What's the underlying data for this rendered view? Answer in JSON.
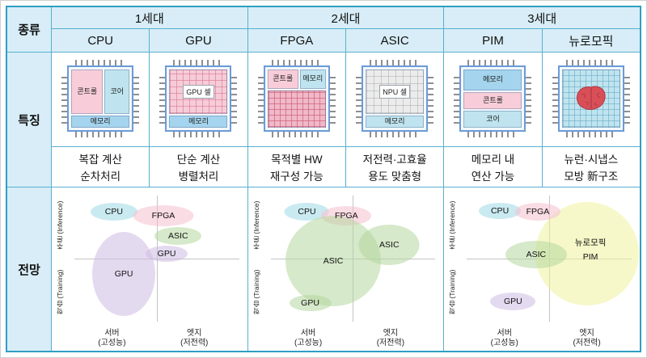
{
  "colors": {
    "table_border": "#2f9ec2",
    "header_bg": "#d8edf7",
    "cyan": "#9fd8e6",
    "pink": "#f5bfcf",
    "green": "#b5d79e",
    "purple": "#cdbce4",
    "yellow": "#eef29c",
    "memory_blue": "#a4d4ee",
    "chip_border": "#6b9bd8",
    "brain_red": "#d94f57"
  },
  "header": {
    "type_label": "종류",
    "generations": [
      {
        "label": "1세대"
      },
      {
        "label": "2세대"
      },
      {
        "label": "3세대"
      }
    ],
    "chips": [
      "CPU",
      "GPU",
      "FPGA",
      "ASIC",
      "PIM",
      "뉴로모픽"
    ]
  },
  "features": {
    "row_label": "특징",
    "items": [
      {
        "chip": "CPU",
        "blocks": {
          "control": "콘트롤",
          "core": "코어",
          "memory": "메모리"
        },
        "desc1": "복잡 계산",
        "desc2": "순차처리"
      },
      {
        "chip": "GPU",
        "blocks": {
          "cell": "GPU 셀",
          "memory": "메모리"
        },
        "desc1": "단순 계산",
        "desc2": "병렬처리"
      },
      {
        "chip": "FPGA",
        "blocks": {
          "control": "콘트롤",
          "memory": "메모리"
        },
        "desc1": "목적별 HW",
        "desc2": "재구성 가능"
      },
      {
        "chip": "ASIC",
        "blocks": {
          "cell": "NPU 셀",
          "memory": "메모리"
        },
        "desc1": "저전력·고효율",
        "desc2": "용도 맞춤형"
      },
      {
        "chip": "PIM",
        "blocks": {
          "memory": "메모리",
          "control": "콘트롤",
          "core": "코어"
        },
        "desc1": "메모리 내",
        "desc2": "연산 가능"
      },
      {
        "chip": "뉴로모픽",
        "blocks": {},
        "desc1": "뉴런·시냅스",
        "desc2": "모방 新구조"
      }
    ]
  },
  "outlook": {
    "row_label": "전망",
    "axis": {
      "y_top": "추론 (Inference)",
      "y_bottom": "학습 (Training)",
      "x_left_1": "서버",
      "x_left_2": "(고성능)",
      "x_right_1": "엣지",
      "x_right_2": "(저전력)"
    },
    "charts": [
      {
        "generation": "1세대",
        "bubbles": [
          {
            "label": "CPU",
            "x": 24,
            "y": 13,
            "w": 58,
            "h": 22,
            "color": "cyan"
          },
          {
            "label": "FPGA",
            "x": 54,
            "y": 16,
            "w": 75,
            "h": 26,
            "color": "pink"
          },
          {
            "label": "ASIC",
            "x": 63,
            "y": 32,
            "w": 58,
            "h": 22,
            "color": "green"
          },
          {
            "label": "GPU",
            "x": 56,
            "y": 46,
            "w": 52,
            "h": 20,
            "color": "purple"
          },
          {
            "label": "GPU",
            "x": 30,
            "y": 62,
            "w": 78,
            "h": 104,
            "color": "purple"
          }
        ]
      },
      {
        "generation": "2세대",
        "bubbles": [
          {
            "label": "CPU",
            "x": 22,
            "y": 13,
            "w": 55,
            "h": 22,
            "color": "cyan"
          },
          {
            "label": "FPGA",
            "x": 46,
            "y": 16,
            "w": 62,
            "h": 24,
            "color": "pink"
          },
          {
            "label": "ASIC",
            "x": 38,
            "y": 52,
            "w": 118,
            "h": 112,
            "color": "green"
          },
          {
            "label": "ASIC",
            "x": 72,
            "y": 39,
            "w": 75,
            "h": 50,
            "color": "green"
          },
          {
            "label": "GPU",
            "x": 24,
            "y": 85,
            "w": 52,
            "h": 20,
            "color": "green"
          }
        ]
      },
      {
        "generation": "3세대",
        "bubbles": [
          {
            "label": "",
            "x": 73,
            "y": 46,
            "w": 128,
            "h": 128,
            "color": "yellow"
          },
          {
            "label": "CPU",
            "x": 20,
            "y": 12,
            "w": 52,
            "h": 20,
            "color": "cyan"
          },
          {
            "label": "FPGA",
            "x": 43,
            "y": 13,
            "w": 56,
            "h": 22,
            "color": "pink"
          },
          {
            "label": "ASIC",
            "x": 42,
            "y": 47,
            "w": 76,
            "h": 34,
            "color": "green"
          },
          {
            "label": "뉴로모픽",
            "x": 75,
            "y": 37,
            "w": 0,
            "h": 0,
            "color": "yellow"
          },
          {
            "label": "PIM",
            "x": 75,
            "y": 49,
            "w": 0,
            "h": 0,
            "color": "yellow"
          },
          {
            "label": "GPU",
            "x": 28,
            "y": 84,
            "w": 56,
            "h": 22,
            "color": "purple"
          }
        ]
      }
    ]
  }
}
